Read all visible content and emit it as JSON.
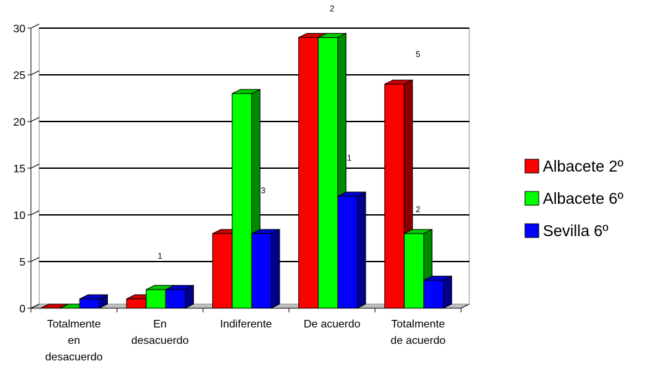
{
  "chart_data": {
    "type": "bar",
    "categories": [
      [
        "Totalmente",
        "en",
        "desacuerdo"
      ],
      [
        "En",
        "desacuerdo"
      ],
      [
        "Indiferente"
      ],
      [
        "De acuerdo"
      ],
      [
        "Totalmente",
        "de acuerdo"
      ]
    ],
    "series": [
      {
        "name": "Albacete 2º",
        "color": "#ff0000",
        "values": [
          0,
          1,
          8,
          29,
          24
        ]
      },
      {
        "name": "Albacete 6º",
        "color": "#00ff00",
        "values": [
          0,
          2,
          23,
          29,
          8
        ]
      },
      {
        "name": "Sevilla 6º",
        "color": "#0000ff",
        "values": [
          1,
          2,
          8,
          12,
          3
        ]
      }
    ],
    "ylim": [
      0,
      30
    ],
    "yticks": [
      0,
      5,
      10,
      15,
      20,
      25,
      30
    ],
    "grid": true,
    "legend": "right",
    "annotations": [
      {
        "text": "2",
        "category": 3,
        "level": 31.8
      },
      {
        "text": "5",
        "category": 4,
        "level": 26.9
      },
      {
        "text": "1",
        "category": 3,
        "level": 15.8,
        "offset": "right"
      },
      {
        "text": "3",
        "category": 2,
        "level": 12.3,
        "offset": "right"
      },
      {
        "text": "2",
        "category": 4,
        "level": 10.3
      },
      {
        "text": "1",
        "category": 1,
        "level": 5.3
      }
    ]
  }
}
